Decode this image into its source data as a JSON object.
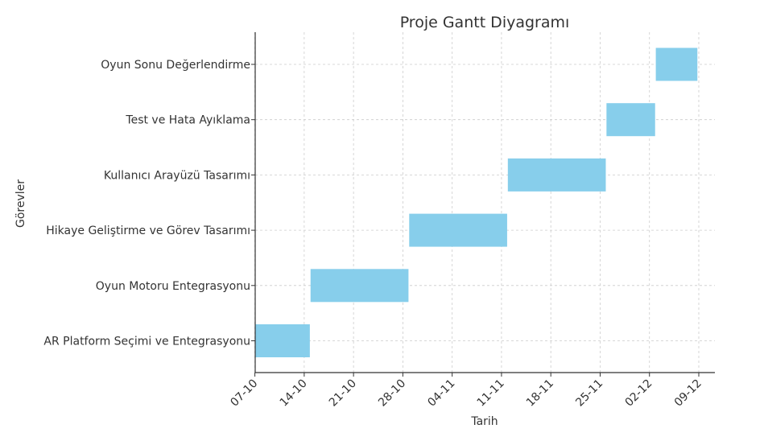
{
  "chart_data": {
    "type": "gantt",
    "title": "Proje Gantt Diyagramı",
    "xlabel": "Tarih",
    "ylabel": "Görevler",
    "grid": true,
    "bar_color": "#87ceeb",
    "x_ticks": [
      "07-10",
      "14-10",
      "21-10",
      "28-10",
      "04-11",
      "11-11",
      "18-11",
      "25-11",
      "02-12",
      "09-12"
    ],
    "tasks": [
      {
        "name": "AR Platform Seçimi ve Entegrasyonu",
        "start": "07-10",
        "end": "14-10"
      },
      {
        "name": "Oyun Motoru Entegrasyonu",
        "start": "15-10",
        "end": "28-10"
      },
      {
        "name": "Hikaye Geliştirme ve Görev Tasarımı",
        "start": "29-10",
        "end": "11-11"
      },
      {
        "name": "Kullanıcı Arayüzü Tasarımı",
        "start": "12-11",
        "end": "25-11"
      },
      {
        "name": "Test ve Hata Ayıklama",
        "start": "26-11",
        "end": "02-12"
      },
      {
        "name": "Oyun Sonu Değerlendirme",
        "start": "03-12",
        "end": "08-12"
      }
    ]
  }
}
